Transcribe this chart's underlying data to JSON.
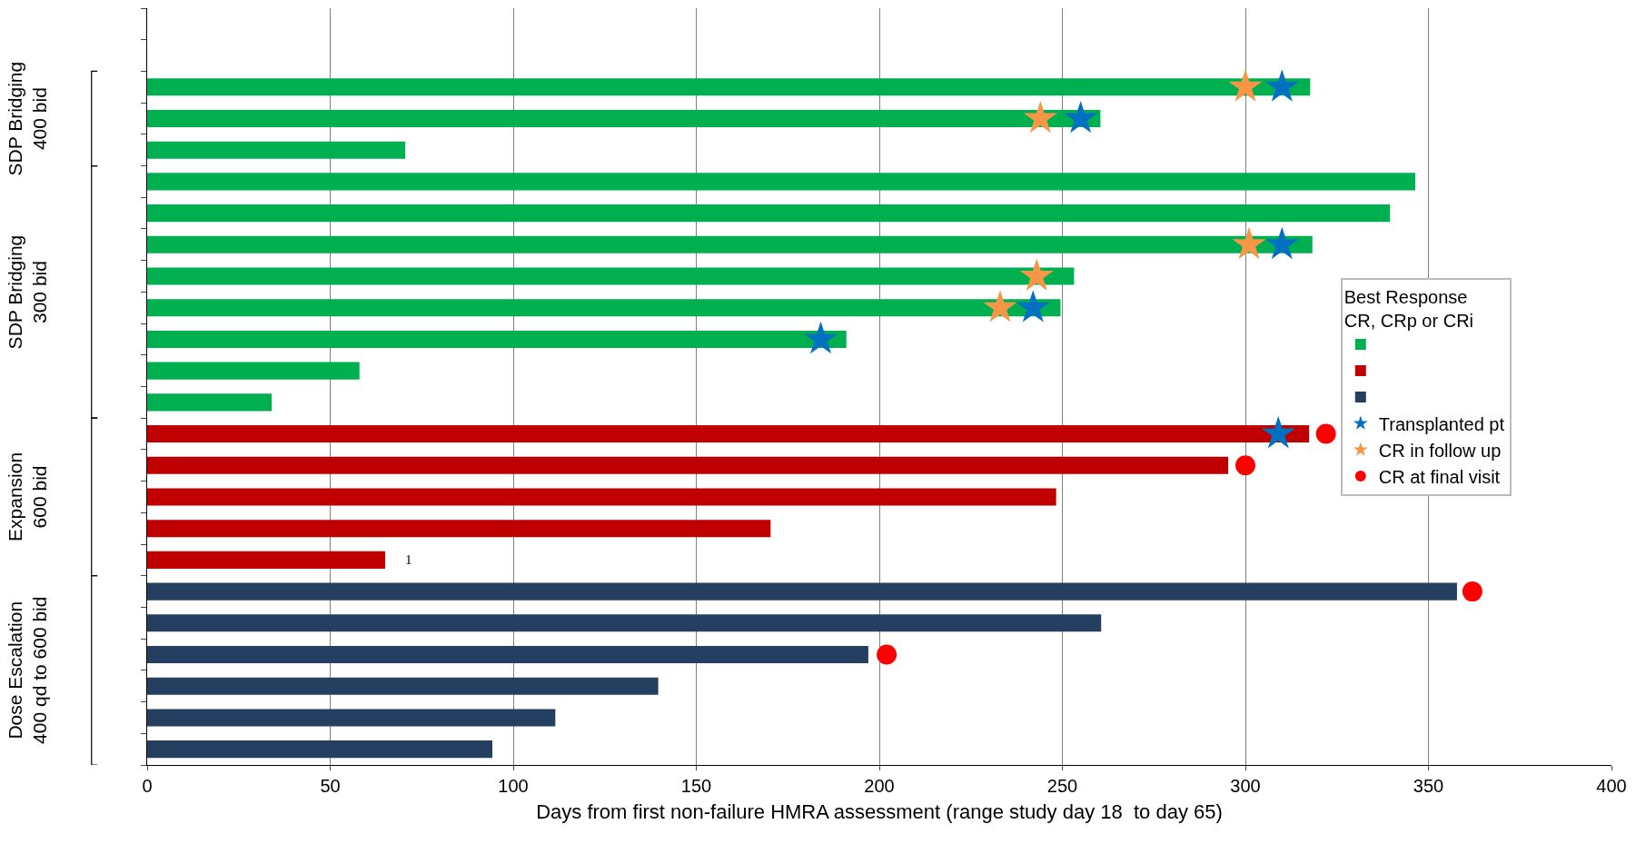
{
  "chart_data": {
    "type": "bar",
    "orientation": "horizontal",
    "xlabel": "Days from first non-failure HMRA assessment (range study day 18  to day 65)",
    "legend_title": "Best Response\nCR, CRp or CRi",
    "categories": [
      null,
      null,
      null,
      null,
      null,
      null,
      null,
      null,
      null,
      null,
      null,
      null,
      null,
      null,
      null,
      null,
      null,
      null,
      null,
      null,
      null,
      null,
      null,
      null
    ],
    "series": [
      {
        "color": "#00b050",
        "values": [
          null,
          null,
          317.7,
          260.4,
          70.5,
          346.4,
          339.5,
          318.3,
          253.2,
          249.5,
          191,
          58,
          34,
          null,
          null,
          null,
          null,
          null,
          null,
          null,
          null,
          null,
          null,
          null
        ]
      },
      {
        "color": "#c00000",
        "values": [
          null,
          null,
          null,
          null,
          null,
          null,
          null,
          null,
          null,
          null,
          null,
          null,
          null,
          317.4,
          295.3,
          248.3,
          170.3,
          65,
          null,
          null,
          null,
          null,
          null,
          null
        ]
      },
      {
        "color": "#243f60",
        "values": [
          null,
          null,
          null,
          null,
          null,
          null,
          null,
          null,
          null,
          null,
          null,
          null,
          null,
          null,
          null,
          null,
          null,
          null,
          357.8,
          260.6,
          197,
          139.6,
          111.5,
          94.3
        ]
      },
      {
        "type": "scatter",
        "name": "Transplanted pt",
        "color": "#0070c0",
        "marker": "star",
        "values": [
          null,
          null,
          310,
          255,
          null,
          null,
          null,
          310,
          null,
          242,
          184,
          null,
          null,
          309,
          null,
          null,
          null,
          null,
          null,
          null,
          null,
          null,
          null,
          null
        ]
      },
      {
        "type": "scatter",
        "name": "CR in follow up",
        "color": "#f79646",
        "marker": "star",
        "values": [
          null,
          null,
          300,
          244,
          null,
          null,
          null,
          301,
          243,
          233,
          null,
          null,
          null,
          null,
          null,
          null,
          null,
          null,
          null,
          null,
          null,
          null,
          null,
          null
        ]
      },
      {
        "type": "scatter",
        "name": "CR at final visit",
        "color": "#ff0000",
        "marker": "circle",
        "values": [
          null,
          null,
          null,
          null,
          null,
          null,
          null,
          null,
          null,
          null,
          null,
          null,
          null,
          322,
          300,
          null,
          null,
          null,
          362,
          null,
          202,
          null,
          null,
          null
        ]
      }
    ],
    "annotations": [
      "SDP Bridging\n400 bid",
      "SDP Bridging\n300 bid",
      "Expansion\n600 bid",
      "Dose Escalation\n400 qd to 600 bid",
      "1"
    ],
    "xlim": [
      0,
      400
    ],
    "xticks": [
      0,
      50,
      100,
      150,
      200,
      250,
      300,
      350,
      400
    ],
    "grid": "x",
    "legend": "right"
  }
}
